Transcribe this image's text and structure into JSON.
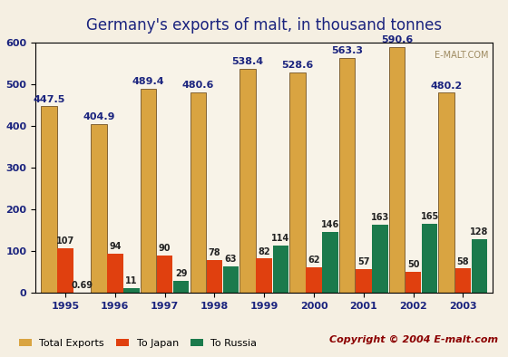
{
  "chart_data": {
    "type": "bar",
    "title": "Germany's exports of malt, in thousand tonnes",
    "categories": [
      "1995",
      "1996",
      "1997",
      "1998",
      "1999",
      "2000",
      "2001",
      "2002",
      "2003"
    ],
    "series": [
      {
        "name": "Total Exports",
        "color": "#d9a441",
        "values": [
          447.5,
          404.9,
          489.4,
          480.6,
          538.4,
          528.6,
          563.3,
          590.6,
          480.2
        ]
      },
      {
        "name": "To Japan",
        "color": "#e0400f",
        "values": [
          107,
          94,
          90,
          78,
          82,
          62,
          57,
          50,
          58
        ]
      },
      {
        "name": "To Russia",
        "color": "#1b7a4c",
        "values": [
          0.69,
          11,
          29,
          63,
          114,
          146,
          163,
          165,
          128
        ]
      }
    ],
    "ylim": [
      0,
      600
    ],
    "yticks": [
      0,
      100,
      200,
      300,
      400,
      500,
      600
    ],
    "grid": false,
    "legend": "bottom",
    "data_labels": true,
    "annotations": [
      "Copyright © 2004 E-malt.com",
      "E-MALT.COM"
    ]
  }
}
